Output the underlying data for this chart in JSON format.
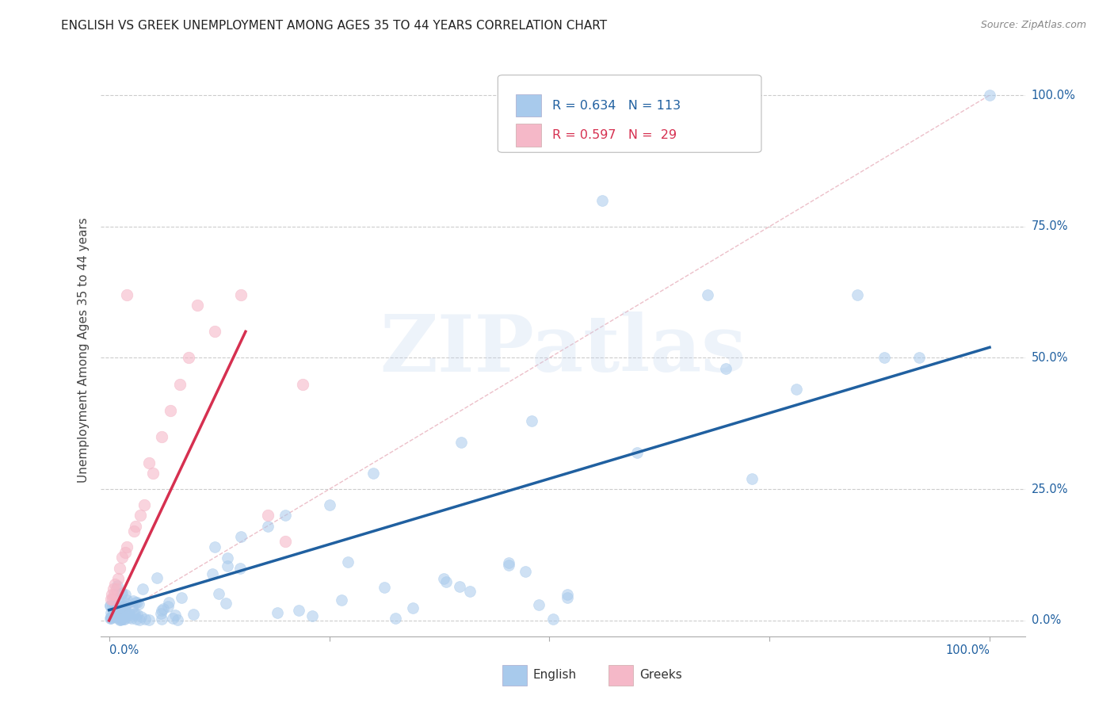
{
  "title": "ENGLISH VS GREEK UNEMPLOYMENT AMONG AGES 35 TO 44 YEARS CORRELATION CHART",
  "source": "Source: ZipAtlas.com",
  "ylabel": "Unemployment Among Ages 35 to 44 years",
  "ytick_values": [
    0.0,
    0.25,
    0.5,
    0.75,
    1.0
  ],
  "ytick_labels": [
    "0.0%",
    "25.0%",
    "50.0%",
    "75.0%",
    "100.0%"
  ],
  "xtick_left": "0.0%",
  "xtick_right": "100.0%",
  "english_color": "#A8CAEC",
  "greek_color": "#F5B8C8",
  "english_line_color": "#2060A0",
  "greek_line_color": "#D63050",
  "diag_color": "#E8B0BC",
  "watermark": "ZIPatlas",
  "legend_r_eng": "R = 0.634",
  "legend_n_eng": "N = 113",
  "legend_r_grk": "R = 0.597",
  "legend_n_grk": "N =  29",
  "legend_label_eng": "English",
  "legend_label_grk": "Greeks",
  "eng_line_x0": 0.0,
  "eng_line_x1": 1.0,
  "eng_line_y0": 0.02,
  "eng_line_y1": 0.52,
  "grk_line_x0": 0.0,
  "grk_line_x1": 0.155,
  "grk_line_y0": 0.0,
  "grk_line_y1": 0.55,
  "xlim": [
    -0.01,
    1.04
  ],
  "ylim": [
    -0.03,
    1.06
  ]
}
